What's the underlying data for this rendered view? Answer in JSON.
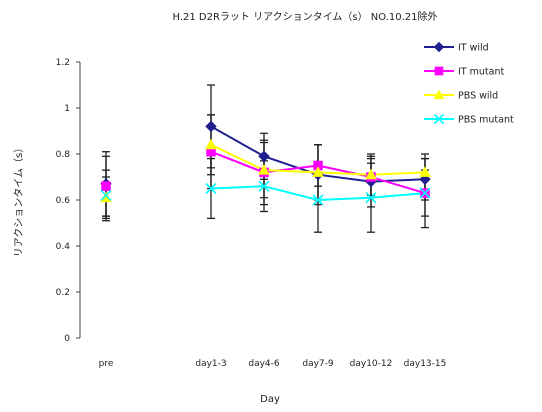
{
  "chart_data": {
    "type": "line",
    "title": "H.21 D2Rラット リアクションタイム（s） NO.10.21除外",
    "xlabel": "Day",
    "ylabel": "リアクションタイム（s）",
    "ylim": [
      0,
      1.2
    ],
    "yticks": [
      "0",
      "0.2",
      "0.4",
      "0.6",
      "0.8",
      "1",
      "1.2"
    ],
    "categories": [
      "pre",
      "day1-3",
      "day4-6",
      "day7-9",
      "day10-12",
      "day13-15"
    ],
    "grid": false,
    "legend_position": "right",
    "series": [
      {
        "name": "IT wild",
        "color": "#1f1f8f",
        "marker": "diamond",
        "values": [
          0.67,
          0.92,
          0.79,
          0.71,
          0.68,
          0.69
        ],
        "errors": [
          0.14,
          0.18,
          0.1,
          0.13,
          0.11,
          0.09
        ]
      },
      {
        "name": "IT mutant",
        "color": "#ff00ff",
        "marker": "square",
        "values": [
          0.66,
          0.81,
          0.72,
          0.75,
          0.7,
          0.63
        ],
        "errors": [
          0.13,
          0.16,
          0.14,
          0.09,
          0.08,
          0.1
        ]
      },
      {
        "name": "PBS wild",
        "color": "#ffff00",
        "marker": "triangle",
        "values": [
          0.61,
          0.84,
          0.73,
          0.72,
          0.71,
          0.72
        ],
        "errors": [
          0.09,
          0.13,
          0.12,
          0.12,
          0.09,
          0.08
        ]
      },
      {
        "name": "PBS mutant",
        "color": "#00ffff",
        "marker": "x",
        "values": [
          0.62,
          0.65,
          0.66,
          0.6,
          0.61,
          0.63
        ],
        "errors": [
          0.11,
          0.13,
          0.11,
          0.14,
          0.15,
          0.15
        ]
      }
    ]
  }
}
